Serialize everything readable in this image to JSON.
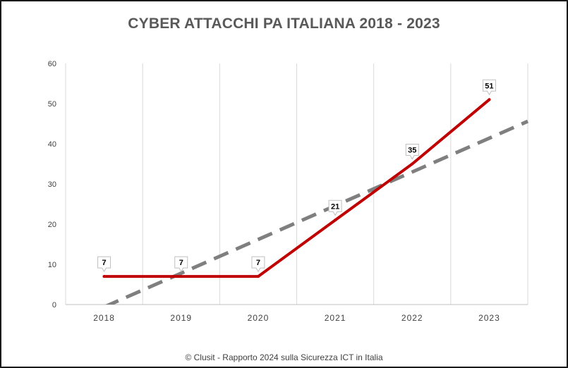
{
  "chart_data": {
    "type": "line",
    "title": "CYBER ATTACCHI PA ITALIANA 2018 - 2023",
    "categories": [
      "2018",
      "2019",
      "2020",
      "2021",
      "2022",
      "2023"
    ],
    "series": [
      {
        "values": [
          7,
          7,
          7,
          21,
          35,
          51
        ],
        "color": "#c00000",
        "data_labels": true
      },
      {
        "values": [
          -0.6,
          7.8,
          16.2,
          24.6,
          33.0,
          41.4
        ],
        "color": "#7f7f7f",
        "line_style": "dashed",
        "trend": "linear"
      }
    ],
    "yticks": [
      "0",
      "10",
      "20",
      "30",
      "40",
      "50",
      "60"
    ],
    "ylim": [
      0,
      60
    ],
    "xlabel": "",
    "ylabel": "",
    "grid": "vertical",
    "legend": "none"
  },
  "footer": "© Clusit - Rapporto 2024 sulla Sicurezza ICT in Italia"
}
